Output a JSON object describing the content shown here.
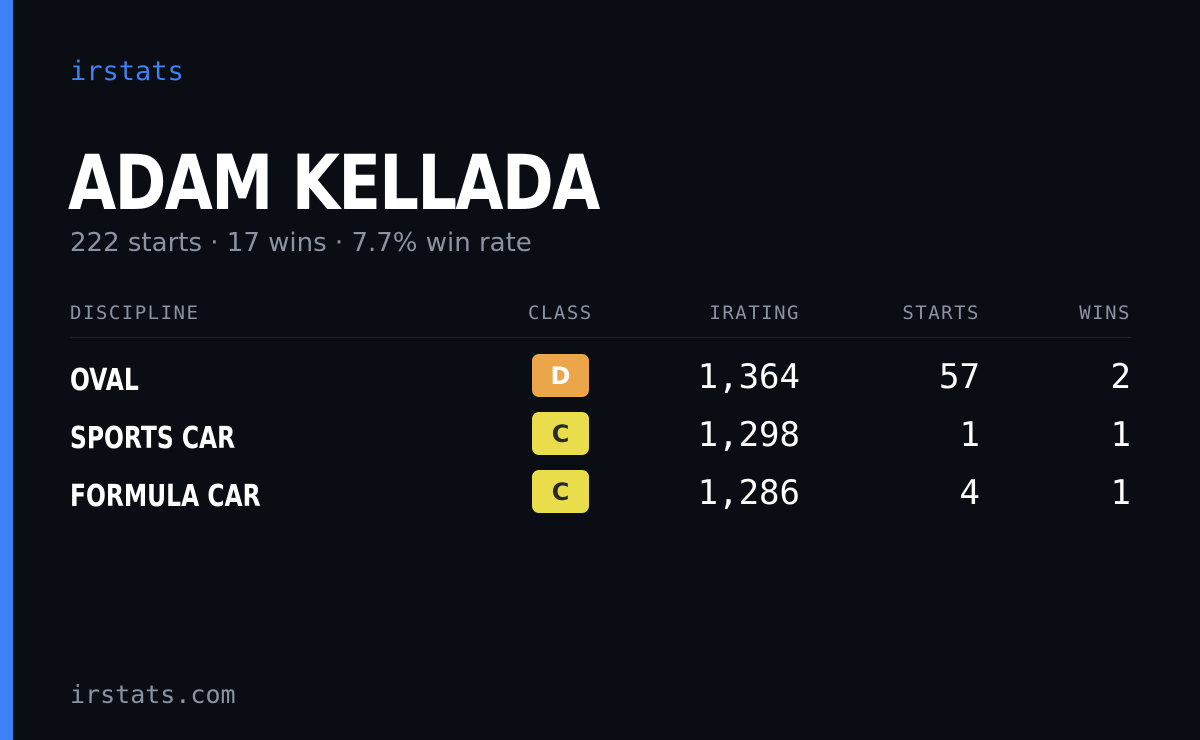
{
  "brand": "irstats",
  "driver": {
    "name": "ADAM KELLADA",
    "summary": "222 starts · 17 wins · 7.7% win rate"
  },
  "table": {
    "headers": {
      "discipline": "DISCIPLINE",
      "class": "CLASS",
      "irating": "IRATING",
      "starts": "STARTS",
      "wins": "WINS"
    },
    "rows": [
      {
        "discipline": "OVAL",
        "class": "D",
        "class_color": "#eca64a",
        "class_text_color": "#ffffff",
        "irating": "1,364",
        "starts": "57",
        "wins": "2"
      },
      {
        "discipline": "SPORTS CAR",
        "class": "C",
        "class_color": "#eadd4c",
        "class_text_color": "#2a2a2a",
        "irating": "1,298",
        "starts": "1",
        "wins": "1"
      },
      {
        "discipline": "FORMULA CAR",
        "class": "C",
        "class_color": "#eadd4c",
        "class_text_color": "#2a2a2a",
        "irating": "1,286",
        "starts": "4",
        "wins": "1"
      }
    ]
  },
  "footer": "irstats.com",
  "colors": {
    "background": "#0a0d14",
    "accent": "#3b82f6",
    "muted_text": "#8b93a3",
    "primary_text": "#ffffff"
  }
}
